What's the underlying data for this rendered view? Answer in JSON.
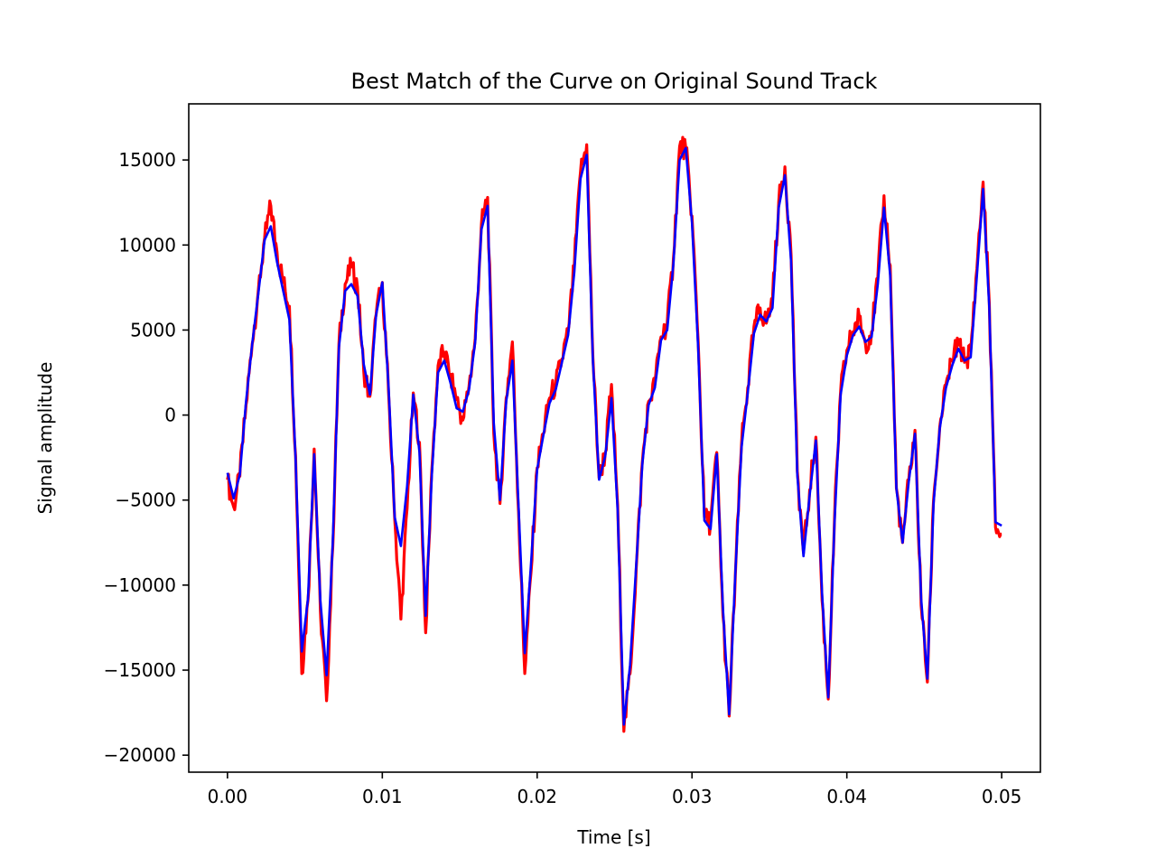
{
  "chart_data": {
    "type": "line",
    "title": "Best Match of the Curve on Original Sound Track",
    "xlabel": "Time [s]",
    "ylabel": "Signal amplitude",
    "xlim": [
      -0.0025,
      0.0525
    ],
    "ylim": [
      -21000,
      18300
    ],
    "grid": false,
    "legend": "none",
    "xticks": [
      0.0,
      0.01,
      0.02,
      0.03,
      0.04,
      0.05
    ],
    "xtick_labels": [
      "0.00",
      "0.01",
      "0.02",
      "0.03",
      "0.04",
      "0.05"
    ],
    "yticks": [
      -20000,
      -15000,
      -10000,
      -5000,
      0,
      5000,
      10000,
      15000
    ],
    "ytick_labels": [
      "−20000",
      "−15000",
      "−10000",
      "−5000",
      "0",
      "5000",
      "10000",
      "15000"
    ],
    "series": [
      {
        "color": "#ff0000",
        "style": "noisy-original",
        "x": [
          0.0,
          0.0004,
          0.0008,
          0.0012,
          0.0016,
          0.002,
          0.0024,
          0.0028,
          0.0032,
          0.0036,
          0.004,
          0.0044,
          0.0048,
          0.0052,
          0.0056,
          0.006,
          0.0064,
          0.0068,
          0.0072,
          0.0076,
          0.008,
          0.0084,
          0.0088,
          0.0092,
          0.0096,
          0.01,
          0.0104,
          0.0108,
          0.0112,
          0.0116,
          0.012,
          0.0124,
          0.0128,
          0.0132,
          0.0136,
          0.014,
          0.0144,
          0.0148,
          0.0152,
          0.0156,
          0.016,
          0.0164,
          0.0168,
          0.0172,
          0.0176,
          0.018,
          0.0184,
          0.0188,
          0.0192,
          0.0196,
          0.02,
          0.0204,
          0.0208,
          0.0212,
          0.0216,
          0.022,
          0.0224,
          0.0228,
          0.0232,
          0.0236,
          0.024,
          0.0244,
          0.0248,
          0.0252,
          0.0256,
          0.026,
          0.0264,
          0.0268,
          0.0272,
          0.0276,
          0.028,
          0.0284,
          0.0288,
          0.0292,
          0.0296,
          0.03,
          0.0304,
          0.0308,
          0.0312,
          0.0316,
          0.032,
          0.0324,
          0.0328,
          0.0332,
          0.0336,
          0.034,
          0.0344,
          0.0348,
          0.0352,
          0.0356,
          0.036,
          0.0364,
          0.0368,
          0.0372,
          0.0376,
          0.038,
          0.0384,
          0.0388,
          0.0392,
          0.0396,
          0.04,
          0.0404,
          0.0408,
          0.0412,
          0.0416,
          0.042,
          0.0424,
          0.0428,
          0.0432,
          0.0436,
          0.044,
          0.0444,
          0.0448,
          0.0452,
          0.0456,
          0.046,
          0.0464,
          0.0468,
          0.0472,
          0.0476,
          0.048,
          0.0484,
          0.0488,
          0.0492,
          0.0496,
          0.05
        ],
        "y": [
          -3800,
          -5400,
          -3600,
          600,
          4200,
          7400,
          10400,
          12300,
          9600,
          7800,
          6400,
          -2400,
          -15200,
          -10900,
          -2000,
          -11500,
          -16800,
          -7800,
          4200,
          7700,
          8700,
          7500,
          2600,
          1100,
          5900,
          7800,
          1400,
          -6100,
          -12000,
          -5500,
          1300,
          -1600,
          -12800,
          -3200,
          2900,
          3700,
          2400,
          900,
          -300,
          1700,
          4500,
          11200,
          12800,
          -1100,
          -5200,
          1000,
          4300,
          -5700,
          -15200,
          -9300,
          -3100,
          -1100,
          1000,
          1800,
          3300,
          4900,
          8800,
          14300,
          15900,
          3400,
          -3700,
          -2200,
          1800,
          -5300,
          -18600,
          -15200,
          -9000,
          -2700,
          800,
          1800,
          4600,
          5400,
          9200,
          15800,
          15700,
          11700,
          4300,
          -6000,
          -6400,
          -2200,
          -11800,
          -17700,
          -9400,
          -1700,
          1600,
          5200,
          6300,
          5400,
          6800,
          12500,
          14600,
          9400,
          -3300,
          -8100,
          -4400,
          -1300,
          -10900,
          -16700,
          -6200,
          1400,
          3800,
          4900,
          5800,
          4200,
          4900,
          8100,
          12900,
          8800,
          -4300,
          -7500,
          -3800,
          -900,
          -11200,
          -15700,
          -5000,
          -700,
          1800,
          3200,
          4400,
          3100,
          3800,
          8600,
          13700,
          6600,
          -6600,
          -7000
        ]
      },
      {
        "color": "#0000ff",
        "style": "fitted-curve",
        "x": [
          0.0,
          0.0004,
          0.0008,
          0.0012,
          0.0016,
          0.002,
          0.0024,
          0.0028,
          0.0032,
          0.0036,
          0.004,
          0.0044,
          0.0048,
          0.0052,
          0.0056,
          0.006,
          0.0064,
          0.0068,
          0.0072,
          0.0076,
          0.008,
          0.0084,
          0.0088,
          0.0092,
          0.0096,
          0.01,
          0.0104,
          0.0108,
          0.0112,
          0.0116,
          0.012,
          0.0124,
          0.0128,
          0.0132,
          0.0136,
          0.014,
          0.0144,
          0.0148,
          0.0152,
          0.0156,
          0.016,
          0.0164,
          0.0168,
          0.0172,
          0.0176,
          0.018,
          0.0184,
          0.0188,
          0.0192,
          0.0196,
          0.02,
          0.0204,
          0.0208,
          0.0212,
          0.0216,
          0.022,
          0.0224,
          0.0228,
          0.0232,
          0.0236,
          0.024,
          0.0244,
          0.0248,
          0.0252,
          0.0256,
          0.026,
          0.0264,
          0.0268,
          0.0272,
          0.0276,
          0.028,
          0.0284,
          0.0288,
          0.0292,
          0.0296,
          0.03,
          0.0304,
          0.0308,
          0.0312,
          0.0316,
          0.032,
          0.0324,
          0.0328,
          0.0332,
          0.0336,
          0.034,
          0.0344,
          0.0348,
          0.0352,
          0.0356,
          0.036,
          0.0364,
          0.0368,
          0.0372,
          0.0376,
          0.038,
          0.0384,
          0.0388,
          0.0392,
          0.0396,
          0.04,
          0.0404,
          0.0408,
          0.0412,
          0.0416,
          0.042,
          0.0424,
          0.0428,
          0.0432,
          0.0436,
          0.044,
          0.0444,
          0.0448,
          0.0452,
          0.0456,
          0.046,
          0.0464,
          0.0468,
          0.0472,
          0.0476,
          0.048,
          0.0484,
          0.0488,
          0.0492,
          0.0496,
          0.05
        ],
        "y": [
          -3400,
          -4900,
          -3500,
          800,
          4200,
          7200,
          10300,
          11100,
          9000,
          7300,
          5600,
          -2600,
          -13900,
          -10800,
          -2300,
          -10900,
          -15300,
          -7500,
          4000,
          7300,
          7700,
          7000,
          3000,
          1200,
          5900,
          7800,
          1700,
          -6000,
          -7700,
          -4200,
          1200,
          -2200,
          -11800,
          -3500,
          2500,
          3200,
          1900,
          400,
          200,
          1500,
          4300,
          10900,
          12300,
          -500,
          -5000,
          800,
          3200,
          -5400,
          -14000,
          -8800,
          -3200,
          -1200,
          700,
          1500,
          3100,
          4700,
          8400,
          13900,
          15300,
          3200,
          -3800,
          -2400,
          1000,
          -5600,
          -18200,
          -14700,
          -8800,
          -2800,
          600,
          1600,
          4400,
          5000,
          8900,
          15000,
          15700,
          11300,
          3900,
          -6200,
          -6700,
          -2300,
          -11400,
          -17600,
          -9300,
          -1900,
          1300,
          4800,
          5900,
          5500,
          6300,
          12200,
          14100,
          9000,
          -3500,
          -8300,
          -4700,
          -1500,
          -10500,
          -16600,
          -6400,
          1200,
          3500,
          4700,
          5200,
          4300,
          4600,
          7700,
          12200,
          8200,
          -4300,
          -7500,
          -3900,
          -1100,
          -10800,
          -15500,
          -5200,
          -800,
          1600,
          2900,
          3900,
          3200,
          3400,
          8200,
          13300,
          6300,
          -6300,
          -6500
        ]
      }
    ]
  }
}
